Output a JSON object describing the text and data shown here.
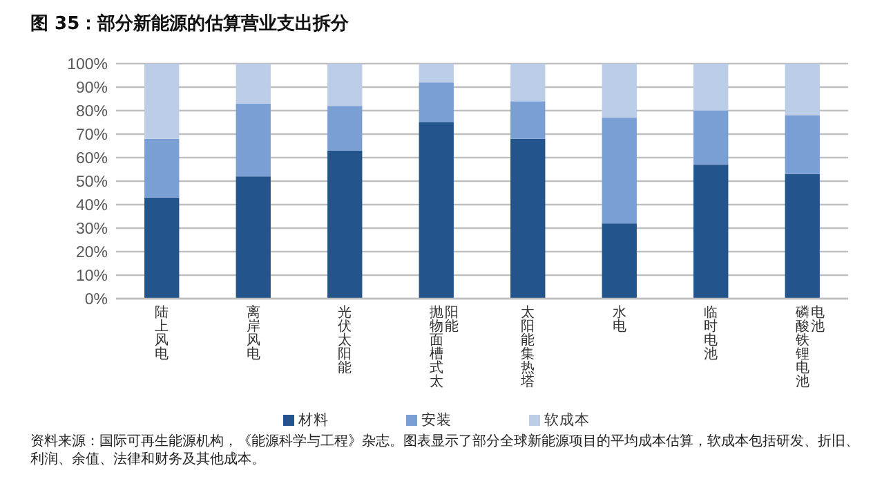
{
  "chart_data": {
    "type": "bar",
    "stacked": true,
    "title": "图 35：部分新能源的估算营业支出拆分",
    "categories": [
      "陆上风电",
      "离岸风电",
      "光伏太阳能",
      "抛物面槽式太阳能",
      "太阳能集热塔",
      "水电",
      "临时电池",
      "磷酸铁锂电池电池"
    ],
    "series": [
      {
        "name": "材料",
        "color": "#24548c",
        "values": [
          43,
          52,
          63,
          75,
          68,
          32,
          57,
          53
        ]
      },
      {
        "name": "安装",
        "color": "#7a9fd4",
        "values": [
          25,
          31,
          19,
          17,
          16,
          45,
          23,
          25
        ]
      },
      {
        "name": "软成本",
        "color": "#bccde8",
        "values": [
          32,
          17,
          18,
          8,
          16,
          23,
          20,
          22
        ]
      }
    ],
    "ylim": [
      0,
      100
    ],
    "yticks": [
      {
        "value": 0,
        "label": "0%"
      },
      {
        "value": 10,
        "label": "10%"
      },
      {
        "value": 20,
        "label": "20%"
      },
      {
        "value": 30,
        "label": "30%"
      },
      {
        "value": 40,
        "label": "40%"
      },
      {
        "value": 50,
        "label": "50%"
      },
      {
        "value": 60,
        "label": "60%"
      },
      {
        "value": 70,
        "label": "70%"
      },
      {
        "value": 80,
        "label": "80%"
      },
      {
        "value": 90,
        "label": "90%"
      },
      {
        "value": 100,
        "label": "100%"
      }
    ],
    "grid": "y",
    "legend": "bottom",
    "annotations": [
      "资料来源：国际可再生能源机构，《能源科学与工程》杂志。图表显示了部分全球新能源项目的平均成本估算，软成本包括研发、折旧、利润、余值、法律和财务及其他成本。"
    ]
  }
}
